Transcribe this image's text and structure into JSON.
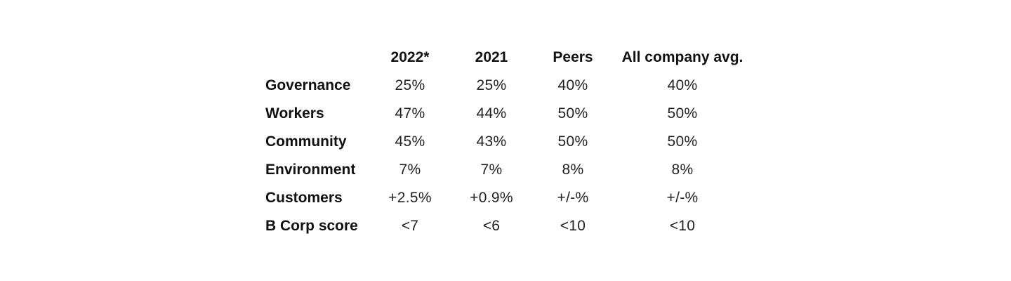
{
  "table": {
    "headers": [
      "2022*",
      "2021",
      "Peers",
      "All company avg."
    ],
    "rows": [
      {
        "label": "Governance",
        "values": [
          "25%",
          "25%",
          "40%",
          "40%"
        ]
      },
      {
        "label": "Workers",
        "values": [
          "47%",
          "44%",
          "50%",
          "50%"
        ]
      },
      {
        "label": "Community",
        "values": [
          "45%",
          "43%",
          "50%",
          "50%"
        ]
      },
      {
        "label": "Environment",
        "values": [
          "7%",
          "7%",
          "8%",
          "8%"
        ]
      },
      {
        "label": "Customers",
        "values": [
          "+2.5%",
          "+0.9%",
          "+/-%",
          "+/-%"
        ]
      },
      {
        "label": "B Corp score",
        "values": [
          "<7",
          "<6",
          "<10",
          "<10"
        ]
      }
    ]
  }
}
